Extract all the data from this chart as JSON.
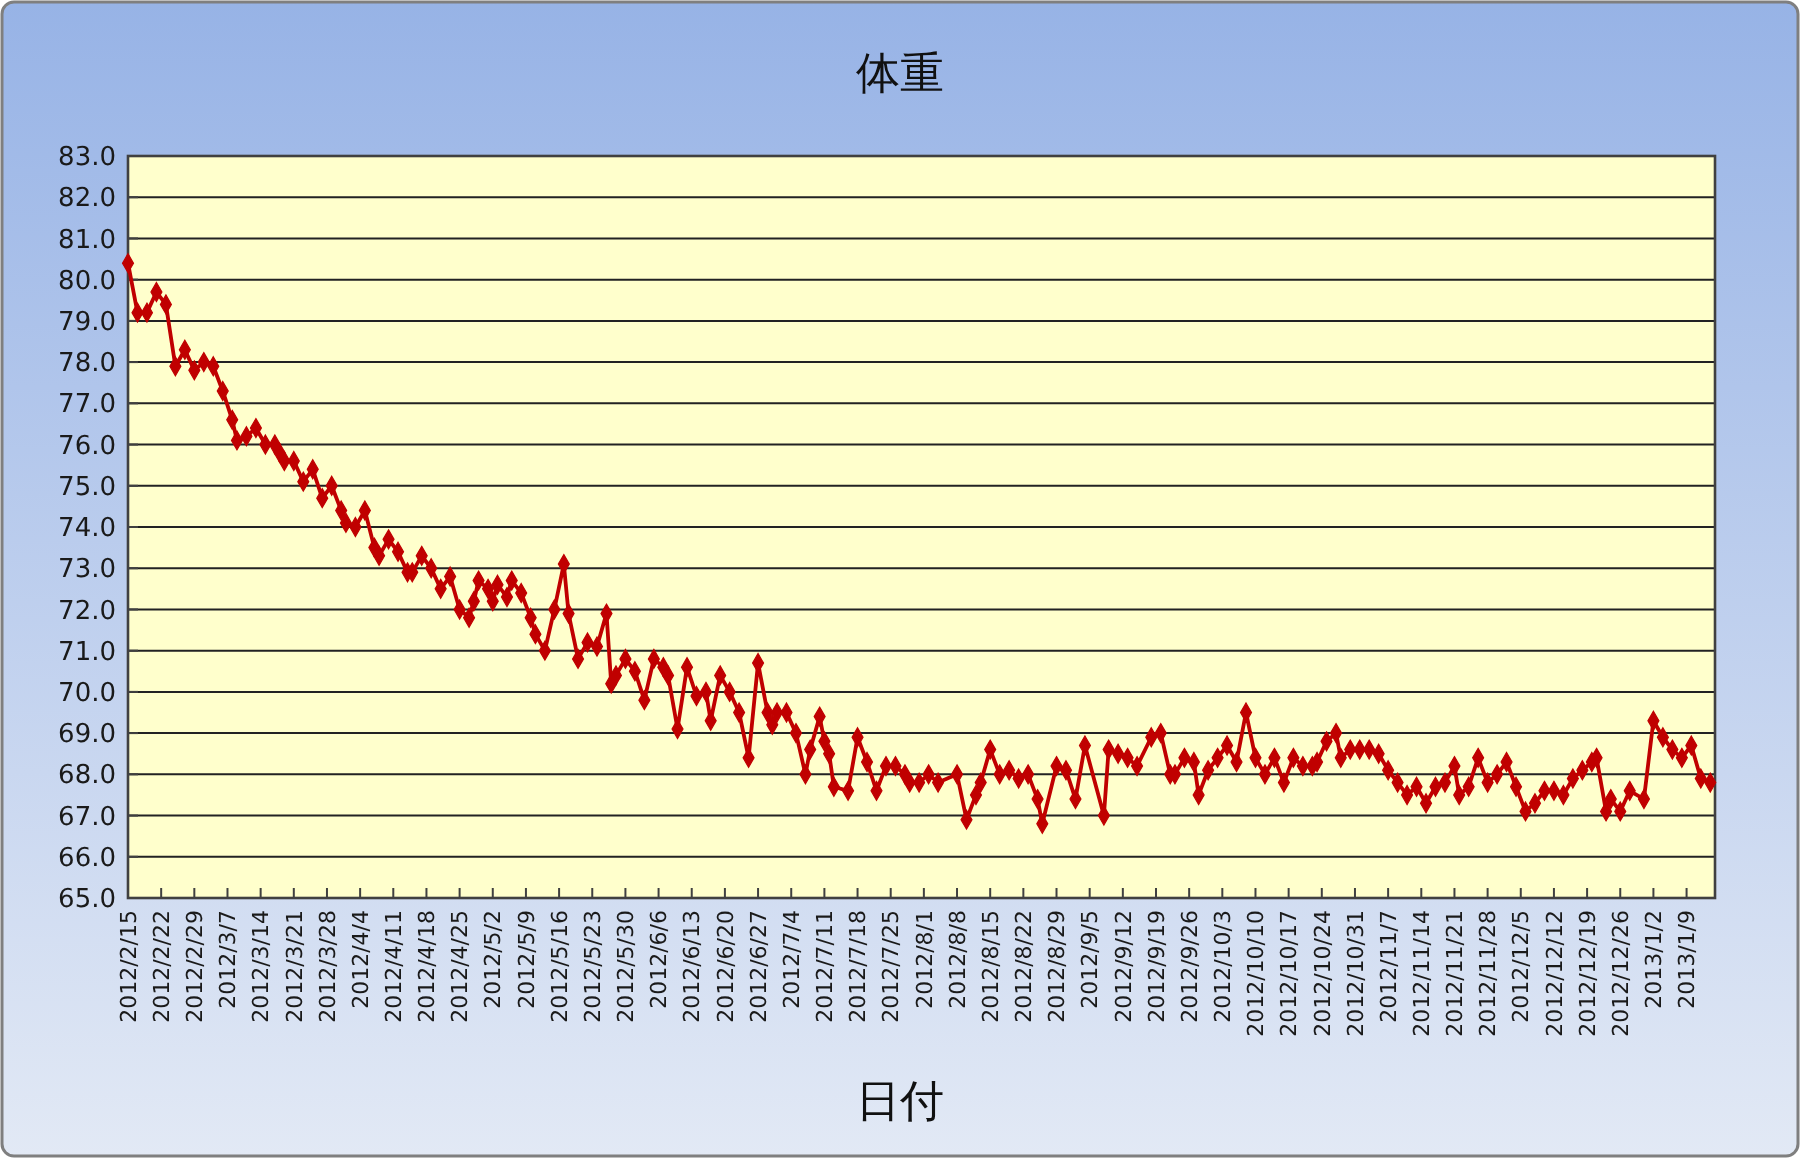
{
  "chart_data": {
    "type": "line",
    "title": "体重",
    "xlabel": "日付",
    "x": [
      "2012-02-15",
      "2012-02-17",
      "2012-02-19",
      "2012-02-21",
      "2012-02-23",
      "2012-02-25",
      "2012-02-27",
      "2012-02-29",
      "2012-03-02",
      "2012-03-04",
      "2012-03-06",
      "2012-03-08",
      "2012-03-09",
      "2012-03-11",
      "2012-03-13",
      "2012-03-15",
      "2012-03-17",
      "2012-03-18",
      "2012-03-19",
      "2012-03-21",
      "2012-03-23",
      "2012-03-25",
      "2012-03-27",
      "2012-03-29",
      "2012-03-31",
      "2012-04-01",
      "2012-04-03",
      "2012-04-05",
      "2012-04-07",
      "2012-04-08",
      "2012-04-10",
      "2012-04-12",
      "2012-04-14",
      "2012-04-15",
      "2012-04-17",
      "2012-04-19",
      "2012-04-21",
      "2012-04-23",
      "2012-04-25",
      "2012-04-27",
      "2012-04-28",
      "2012-04-29",
      "2012-05-01",
      "2012-05-02",
      "2012-05-03",
      "2012-05-05",
      "2012-05-06",
      "2012-05-08",
      "2012-05-10",
      "2012-05-11",
      "2012-05-13",
      "2012-05-15",
      "2012-05-17",
      "2012-05-18",
      "2012-05-20",
      "2012-05-22",
      "2012-05-24",
      "2012-05-26",
      "2012-05-27",
      "2012-05-28",
      "2012-05-30",
      "2012-06-01",
      "2012-06-03",
      "2012-06-05",
      "2012-06-07",
      "2012-06-08",
      "2012-06-10",
      "2012-06-12",
      "2012-06-14",
      "2012-06-16",
      "2012-06-17",
      "2012-06-19",
      "2012-06-21",
      "2012-06-23",
      "2012-06-25",
      "2012-06-27",
      "2012-06-29",
      "2012-06-30",
      "2012-07-01",
      "2012-07-03",
      "2012-07-05",
      "2012-07-07",
      "2012-07-08",
      "2012-07-10",
      "2012-07-11",
      "2012-07-12",
      "2012-07-13",
      "2012-07-16",
      "2012-07-18",
      "2012-07-20",
      "2012-07-22",
      "2012-07-24",
      "2012-07-26",
      "2012-07-28",
      "2012-07-29",
      "2012-07-31",
      "2012-08-02",
      "2012-08-04",
      "2012-08-08",
      "2012-08-10",
      "2012-08-12",
      "2012-08-13",
      "2012-08-15",
      "2012-08-17",
      "2012-08-19",
      "2012-08-21",
      "2012-08-23",
      "2012-08-25",
      "2012-08-26",
      "2012-08-29",
      "2012-08-31",
      "2012-09-02",
      "2012-09-04",
      "2012-09-08",
      "2012-09-09",
      "2012-09-11",
      "2012-09-13",
      "2012-09-15",
      "2012-09-18",
      "2012-09-20",
      "2012-09-22",
      "2012-09-23",
      "2012-09-25",
      "2012-09-27",
      "2012-09-28",
      "2012-09-30",
      "2012-10-02",
      "2012-10-04",
      "2012-10-06",
      "2012-10-08",
      "2012-10-10",
      "2012-10-12",
      "2012-10-14",
      "2012-10-16",
      "2012-10-18",
      "2012-10-20",
      "2012-10-22",
      "2012-10-23",
      "2012-10-25",
      "2012-10-27",
      "2012-10-28",
      "2012-10-30",
      "2012-11-01",
      "2012-11-03",
      "2012-11-05",
      "2012-11-07",
      "2012-11-09",
      "2012-11-11",
      "2012-11-13",
      "2012-11-15",
      "2012-11-17",
      "2012-11-19",
      "2012-11-21",
      "2012-11-22",
      "2012-11-24",
      "2012-11-26",
      "2012-11-28",
      "2012-11-30",
      "2012-12-02",
      "2012-12-04",
      "2012-12-06",
      "2012-12-08",
      "2012-12-10",
      "2012-12-12",
      "2012-12-14",
      "2012-12-16",
      "2012-12-18",
      "2012-12-20",
      "2012-12-21",
      "2012-12-23",
      "2012-12-24",
      "2012-12-26",
      "2012-12-28",
      "2012-12-31",
      "2013-01-02",
      "2013-01-04",
      "2013-01-06",
      "2013-01-08",
      "2013-01-10",
      "2013-01-12",
      "2013-01-14"
    ],
    "series": [
      {
        "color": "#c00000",
        "values": [
          80.4,
          79.2,
          79.2,
          79.7,
          79.4,
          77.9,
          78.3,
          77.8,
          78.0,
          77.9,
          77.3,
          76.6,
          76.1,
          76.2,
          76.4,
          76.0,
          76.0,
          75.8,
          75.6,
          75.6,
          75.1,
          75.4,
          74.7,
          75.0,
          74.4,
          74.1,
          74.0,
          74.4,
          73.5,
          73.3,
          73.7,
          73.4,
          72.9,
          72.9,
          73.3,
          73.0,
          72.5,
          72.8,
          72.0,
          71.8,
          72.2,
          72.7,
          72.5,
          72.2,
          72.6,
          72.3,
          72.7,
          72.4,
          71.8,
          71.4,
          71.0,
          72.0,
          73.1,
          71.9,
          70.8,
          71.2,
          71.1,
          71.9,
          70.2,
          70.4,
          70.8,
          70.5,
          69.8,
          70.8,
          70.6,
          70.4,
          69.1,
          70.6,
          69.9,
          70.0,
          69.3,
          70.4,
          70.0,
          69.5,
          68.4,
          70.7,
          69.5,
          69.2,
          69.5,
          69.5,
          69.0,
          68.0,
          68.6,
          69.4,
          68.8,
          68.5,
          67.7,
          67.6,
          68.9,
          68.3,
          67.6,
          68.2,
          68.2,
          68.0,
          67.8,
          67.8,
          68.0,
          67.8,
          68.0,
          66.9,
          67.5,
          67.8,
          68.6,
          68.0,
          68.1,
          67.9,
          68.0,
          67.4,
          66.8,
          68.2,
          68.1,
          67.4,
          68.7,
          67.0,
          68.6,
          68.5,
          68.4,
          68.2,
          68.9,
          69.0,
          68.0,
          68.0,
          68.4,
          68.3,
          67.5,
          68.1,
          68.4,
          68.7,
          68.3,
          69.5,
          68.4,
          68.0,
          68.4,
          67.8,
          68.4,
          68.2,
          68.2,
          68.3,
          68.8,
          69.0,
          68.4,
          68.6,
          68.6,
          68.6,
          68.5,
          68.1,
          67.8,
          67.5,
          67.7,
          67.3,
          67.7,
          67.8,
          68.2,
          67.5,
          67.7,
          68.4,
          67.8,
          68.0,
          68.3,
          67.7,
          67.1,
          67.3,
          67.6,
          67.6,
          67.5,
          67.9,
          68.1,
          68.3,
          68.4,
          67.1,
          67.4,
          67.1,
          67.6,
          67.4,
          69.3,
          68.9,
          68.6,
          68.4,
          68.7,
          67.9,
          67.8
        ]
      }
    ],
    "xlim": [
      "2012-02-15",
      "2013-01-15"
    ],
    "xticks": [
      {
        "value": "2012-02-15",
        "label": "2012/2/15"
      },
      {
        "value": "2012-02-22",
        "label": "2012/2/22"
      },
      {
        "value": "2012-02-29",
        "label": "2012/2/29"
      },
      {
        "value": "2012-03-07",
        "label": "2012/3/7"
      },
      {
        "value": "2012-03-14",
        "label": "2012/3/14"
      },
      {
        "value": "2012-03-21",
        "label": "2012/3/21"
      },
      {
        "value": "2012-03-28",
        "label": "2012/3/28"
      },
      {
        "value": "2012-04-04",
        "label": "2012/4/4"
      },
      {
        "value": "2012-04-11",
        "label": "2012/4/11"
      },
      {
        "value": "2012-04-18",
        "label": "2012/4/18"
      },
      {
        "value": "2012-04-25",
        "label": "2012/4/25"
      },
      {
        "value": "2012-05-02",
        "label": "2012/5/2"
      },
      {
        "value": "2012-05-09",
        "label": "2012/5/9"
      },
      {
        "value": "2012-05-16",
        "label": "2012/5/16"
      },
      {
        "value": "2012-05-23",
        "label": "2012/5/23"
      },
      {
        "value": "2012-05-30",
        "label": "2012/5/30"
      },
      {
        "value": "2012-06-06",
        "label": "2012/6/6"
      },
      {
        "value": "2012-06-13",
        "label": "2012/6/13"
      },
      {
        "value": "2012-06-20",
        "label": "2012/6/20"
      },
      {
        "value": "2012-06-27",
        "label": "2012/6/27"
      },
      {
        "value": "2012-07-04",
        "label": "2012/7/4"
      },
      {
        "value": "2012-07-11",
        "label": "2012/7/11"
      },
      {
        "value": "2012-07-18",
        "label": "2012/7/18"
      },
      {
        "value": "2012-07-25",
        "label": "2012/7/25"
      },
      {
        "value": "2012-08-01",
        "label": "2012/8/1"
      },
      {
        "value": "2012-08-08",
        "label": "2012/8/8"
      },
      {
        "value": "2012-08-15",
        "label": "2012/8/15"
      },
      {
        "value": "2012-08-22",
        "label": "2012/8/22"
      },
      {
        "value": "2012-08-29",
        "label": "2012/8/29"
      },
      {
        "value": "2012-09-05",
        "label": "2012/9/5"
      },
      {
        "value": "2012-09-12",
        "label": "2012/9/12"
      },
      {
        "value": "2012-09-19",
        "label": "2012/9/19"
      },
      {
        "value": "2012-09-26",
        "label": "2012/9/26"
      },
      {
        "value": "2012-10-03",
        "label": "2012/10/3"
      },
      {
        "value": "2012-10-10",
        "label": "2012/10/10"
      },
      {
        "value": "2012-10-17",
        "label": "2012/10/17"
      },
      {
        "value": "2012-10-24",
        "label": "2012/10/24"
      },
      {
        "value": "2012-10-31",
        "label": "2012/10/31"
      },
      {
        "value": "2012-11-07",
        "label": "2012/11/7"
      },
      {
        "value": "2012-11-14",
        "label": "2012/11/14"
      },
      {
        "value": "2012-11-21",
        "label": "2012/11/21"
      },
      {
        "value": "2012-11-28",
        "label": "2012/11/28"
      },
      {
        "value": "2012-12-05",
        "label": "2012/12/5"
      },
      {
        "value": "2012-12-12",
        "label": "2012/12/12"
      },
      {
        "value": "2012-12-19",
        "label": "2012/12/19"
      },
      {
        "value": "2012-12-26",
        "label": "2012/12/26"
      },
      {
        "value": "2013-01-02",
        "label": "2013/1/2"
      },
      {
        "value": "2013-01-09",
        "label": "2013/1/9"
      }
    ],
    "ylim": [
      65,
      83
    ],
    "yticks": [
      {
        "value": 65,
        "label": "65.0"
      },
      {
        "value": 66,
        "label": "66.0"
      },
      {
        "value": 67,
        "label": "67.0"
      },
      {
        "value": 68,
        "label": "68.0"
      },
      {
        "value": 69,
        "label": "69.0"
      },
      {
        "value": 70,
        "label": "70.0"
      },
      {
        "value": 71,
        "label": "71.0"
      },
      {
        "value": 72,
        "label": "72.0"
      },
      {
        "value": 73,
        "label": "73.0"
      },
      {
        "value": 74,
        "label": "74.0"
      },
      {
        "value": 75,
        "label": "75.0"
      },
      {
        "value": 76,
        "label": "76.0"
      },
      {
        "value": 77,
        "label": "77.0"
      },
      {
        "value": 78,
        "label": "78.0"
      },
      {
        "value": 79,
        "label": "79.0"
      },
      {
        "value": 80,
        "label": "80.0"
      },
      {
        "value": 81,
        "label": "81.0"
      },
      {
        "value": 82,
        "label": "82.0"
      },
      {
        "value": 83,
        "label": "83.0"
      }
    ],
    "grid": "y",
    "marker": "diamond"
  }
}
